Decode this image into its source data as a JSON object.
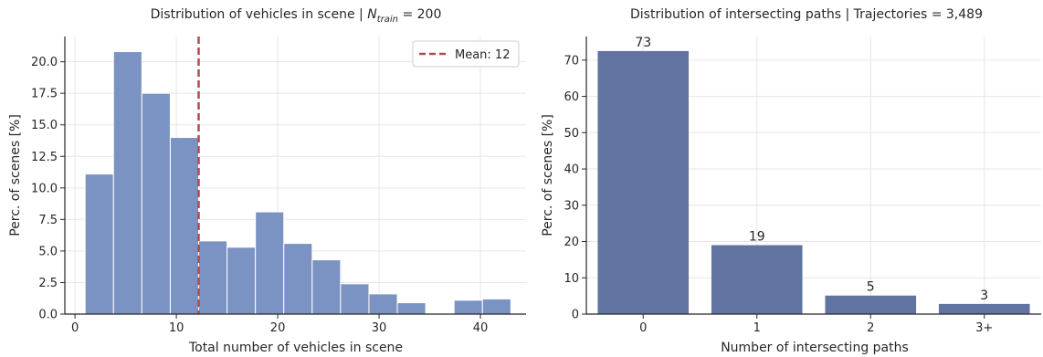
{
  "chart_data": [
    {
      "type": "bar",
      "title_prefix": "Distribution of vehicles in scene | ",
      "title_math_base": "N",
      "title_math_sub": "train",
      "title_suffix": " = 200",
      "xlabel": "Total number of vehicles in scene",
      "ylabel": "Perc. of scenes [%]",
      "xlim": [
        -1,
        44.5
      ],
      "ylim": [
        0,
        22
      ],
      "xticks": [
        0,
        10,
        20,
        30,
        40
      ],
      "yticks": [
        0.0,
        2.5,
        5.0,
        7.5,
        10.0,
        12.5,
        15.0,
        17.5,
        20.0
      ],
      "ytick_labels": [
        "0.0",
        "2.5",
        "5.0",
        "7.5",
        "10.0",
        "12.5",
        "15.0",
        "17.5",
        "20.0"
      ],
      "bins": [
        {
          "x0": 1.0,
          "x1": 3.8,
          "value": 11.1
        },
        {
          "x0": 3.8,
          "x1": 6.6,
          "value": 20.8
        },
        {
          "x0": 6.6,
          "x1": 9.4,
          "value": 17.5
        },
        {
          "x0": 9.4,
          "x1": 12.2,
          "value": 14.0
        },
        {
          "x0": 12.2,
          "x1": 15.0,
          "value": 5.8
        },
        {
          "x0": 15.0,
          "x1": 17.8,
          "value": 5.3
        },
        {
          "x0": 17.8,
          "x1": 20.6,
          "value": 8.1
        },
        {
          "x0": 20.6,
          "x1": 23.4,
          "value": 5.6
        },
        {
          "x0": 23.4,
          "x1": 26.2,
          "value": 4.3
        },
        {
          "x0": 26.2,
          "x1": 29.0,
          "value": 2.4
        },
        {
          "x0": 29.0,
          "x1": 31.8,
          "value": 1.6
        },
        {
          "x0": 31.8,
          "x1": 34.6,
          "value": 0.9
        },
        {
          "x0": 37.4,
          "x1": 40.2,
          "value": 1.1
        },
        {
          "x0": 40.2,
          "x1": 43.0,
          "value": 1.2
        }
      ],
      "mean_line": {
        "x": 12.2,
        "label": "Mean: 12"
      },
      "legend_position": "top-right",
      "grid": true,
      "colors": {
        "bar": "#7b93c2",
        "bar_edge": "#ffffff",
        "mean": "#b24a4a"
      }
    },
    {
      "type": "bar",
      "title": "Distribution of intersecting paths | Trajectories = 3,489",
      "xlabel": "Number of intersecting paths",
      "ylabel": "Perc. of scenes [%]",
      "categories": [
        "0",
        "1",
        "2",
        "3+"
      ],
      "values": [
        72.5,
        19.0,
        5.1,
        2.8
      ],
      "data_labels": [
        "73",
        "19",
        "5",
        "3"
      ],
      "ylim": [
        0,
        76.5
      ],
      "yticks": [
        0,
        10,
        20,
        30,
        40,
        50,
        60,
        70
      ],
      "ytick_labels": [
        "0",
        "10",
        "20",
        "30",
        "40",
        "50",
        "60",
        "70"
      ],
      "grid": true,
      "colors": {
        "bar": "#6174a1"
      }
    }
  ]
}
